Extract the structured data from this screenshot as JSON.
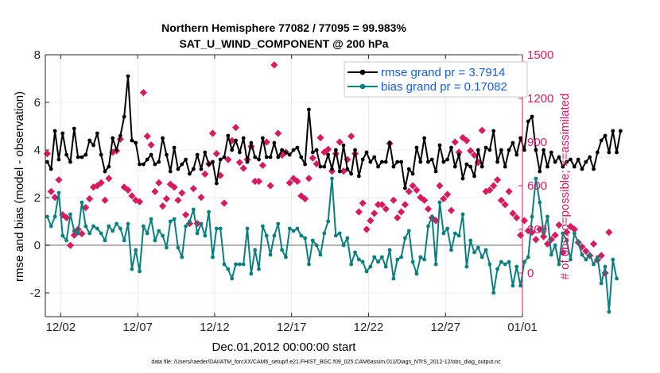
{
  "chart_data": {
    "type": "line",
    "title": "Northern Hemisphere 77082 / 77095 = 99.983%",
    "subtitle": "SAT_U_WIND_COMPONENT @ 200 hPa",
    "xlabel": "Dec.01,2012 00:00:00 start",
    "ylabel_left": "rmse and bias (model - observation)",
    "ylabel_right": "# of obs: o=possible; ×=assimilated",
    "footnote": "data file: /Users/raeder/DAI/ATM_forcXX/CAM6_setup/f.e21.FHIST_BGC.f09_025.CAM6assim.011/Diags_NTrS_2012-12/obs_diag_output.nc",
    "xlim": [
      0,
      31
    ],
    "ylim_left": [
      -3,
      8
    ],
    "ylim_right": [
      -300,
      1500
    ],
    "x_tick_labels": [
      "12/02",
      "12/07",
      "12/12",
      "12/17",
      "12/22",
      "12/27",
      "01/01"
    ],
    "y_left_ticks": [
      "-2",
      "0",
      "2",
      "4",
      "6",
      "8"
    ],
    "y_right_ticks": [
      "0",
      "300",
      "600",
      "900",
      "1200",
      "1500"
    ],
    "legend": [
      {
        "label": "rmse grand pr = 3.7914",
        "color": "#000000"
      },
      {
        "label": "bias grand pr = 0.17082",
        "color": "#0a7f7f"
      }
    ],
    "colors": {
      "rmse": "#000000",
      "bias": "#0a7f7f",
      "obs": "#d81b60",
      "zero": "#b3b3b3",
      "right_axis": "#d81b60"
    },
    "series": [
      {
        "name": "rmse",
        "x_start": 0.125,
        "x_step": 0.25,
        "values": [
          3.5,
          3.2,
          4.8,
          3.6,
          4.7,
          3.8,
          3.5,
          4.9,
          3.7,
          3.7,
          3.8,
          4.4,
          4.2,
          4.7,
          3.8,
          3.1,
          3.3,
          4.5,
          4.0,
          4.6,
          5.4,
          7.1,
          4.4,
          4.3,
          3.4,
          3.4,
          3.6,
          3.8,
          3.4,
          3.5,
          4.5,
          3.8,
          3.1,
          4.1,
          3.2,
          3.4,
          3.6,
          3.0,
          3.2,
          3.8,
          3.2,
          3.9,
          3.4,
          3.5,
          2.6,
          3.6,
          3.7,
          4.6,
          4.0,
          4.4,
          3.9,
          4.5,
          3.5,
          4.3,
          3.7,
          3.6,
          4.5,
          3.7,
          3.7,
          4.3,
          3.7,
          4.0,
          3.9,
          3.8,
          4.0,
          4.1,
          3.7,
          3.4,
          5.7,
          3.9,
          4.0,
          3.3,
          3.3,
          3.8,
          3.2,
          4.0,
          3.1,
          4.2,
          3.2,
          3.0,
          4.0,
          2.9,
          3.6,
          3.9,
          3.5,
          3.7,
          3.3,
          3.5,
          3.5,
          4.3,
          3.3,
          3.5,
          3.5,
          2.4,
          3.2,
          3.0,
          4.1,
          3.5,
          4.5,
          3.5,
          3.6,
          3.1,
          4.2,
          3.5,
          3.6,
          4.1,
          3.3,
          3.8,
          2.8,
          3.4,
          3.3,
          2.9,
          4.0,
          3.3,
          4.1,
          4.0,
          4.8,
          3.5,
          4.0,
          3.3,
          4.0,
          4.3,
          3.8,
          4.5,
          4.0,
          5.2,
          5.4,
          4.0,
          3.1,
          4.0,
          3.3,
          3.9,
          3.5,
          3.7,
          3.3,
          3.5,
          3.6,
          3.3,
          3.6,
          3.2,
          3.5,
          3.7,
          3.2,
          3.9,
          4.4,
          4.6,
          3.9,
          4.8,
          3.9,
          4.8
        ]
      },
      {
        "name": "bias",
        "x_start": 0.125,
        "x_step": 0.25,
        "values": [
          1.2,
          0.8,
          1.2,
          2.2,
          0.4,
          0.2,
          1.3,
          0.6,
          0.5,
          1.8,
          0.8,
          0.5,
          0.8,
          0.7,
          0.5,
          0.2,
          0.8,
          0.6,
          0.9,
          0.7,
          0.2,
          0.9,
          -1.0,
          -0.2,
          -1.1,
          0.8,
          0.5,
          1.1,
          0.2,
          0.6,
          0.4,
          -0.1,
          1.0,
          1.1,
          -0.1,
          -0.5,
          0.8,
          1.0,
          1.5,
          0.5,
          0.9,
          0.4,
          1.4,
          -0.5,
          0.7,
          0.7,
          -0.8,
          -1.0,
          -1.4,
          -0.8,
          -0.8,
          -0.8,
          0.7,
          -1.2,
          -0.2,
          -1.0,
          0.8,
          0.4,
          -0.4,
          0.4,
          0.9,
          -0.2,
          -0.5,
          0.7,
          0.6,
          0.7,
          0.4,
          0.3,
          -0.8,
          0.2,
          0.0,
          -0.4,
          0.5,
          1.0,
          2.8,
          0.4,
          0.5,
          0.0,
          0.3,
          -0.8,
          -0.3,
          -0.6,
          -0.7,
          -1.1,
          -0.9,
          -0.5,
          -0.7,
          -0.5,
          -0.9,
          -0.2,
          -1.4,
          -0.6,
          -0.5,
          0.3,
          0.6,
          -0.7,
          -1.2,
          -0.5,
          -0.6,
          0.8,
          1.2,
          -0.8,
          1.8,
          0.5,
          0.7,
          -0.2,
          0.5,
          0.4,
          1.3,
          -0.9,
          0.2,
          -0.3,
          -0.1,
          -0.5,
          -0.2,
          -0.8,
          -2.0,
          -1.0,
          -0.7,
          -0.8,
          -0.7,
          -1.7,
          -0.9,
          -1.7,
          -0.7,
          -0.5,
          1.2,
          2.8,
          1.8,
          0.5,
          1.2,
          -0.4,
          0.0,
          -0.8,
          0.5,
          0.2,
          -0.6,
          0.5,
          0.1,
          -0.4,
          -0.6,
          -0.4,
          -0.8,
          -0.5,
          -1.6,
          -0.9,
          -2.8,
          -0.6,
          -1.4
        ]
      },
      {
        "name": "obs",
        "x_start": 0.125,
        "x_step": 0.25,
        "values": [
          820,
          560,
          520,
          640,
          400,
          380,
          190,
          260,
          300,
          270,
          450,
          510,
          590,
          600,
          620,
          500,
          650,
          830,
          840,
          920,
          590,
          570,
          530,
          500,
          490,
          1240,
          940,
          880,
          560,
          620,
          460,
          510,
          610,
          590,
          500,
          550,
          400,
          340,
          580,
          340,
          520,
          680,
          750,
          960,
          820,
          670,
          480,
          780,
          910,
          1000,
          760,
          720,
          780,
          870,
          630,
          630,
          740,
          900,
          600,
          1430,
          960,
          810,
          830,
          620,
          650,
          630,
          530,
          510,
          650,
          790,
          750,
          930,
          830,
          850,
          700,
          820,
          900,
          700,
          780,
          940,
          820,
          420,
          480,
          300,
          360,
          410,
          470,
          470,
          440,
          890,
          500,
          380,
          420,
          470,
          560,
          600,
          570,
          520,
          500,
          440,
          380,
          360,
          600,
          510,
          540,
          430,
          900,
          830,
          930,
          910,
          840,
          810,
          760,
          980,
          560,
          570,
          600,
          640,
          500,
          470,
          560,
          410,
          380,
          260,
          360,
          290,
          280,
          230,
          300,
          250,
          200,
          230,
          260,
          330,
          140,
          280,
          320,
          300,
          210,
          180,
          150,
          120,
          200,
          90,
          120,
          0,
          280
        ]
      }
    ]
  }
}
